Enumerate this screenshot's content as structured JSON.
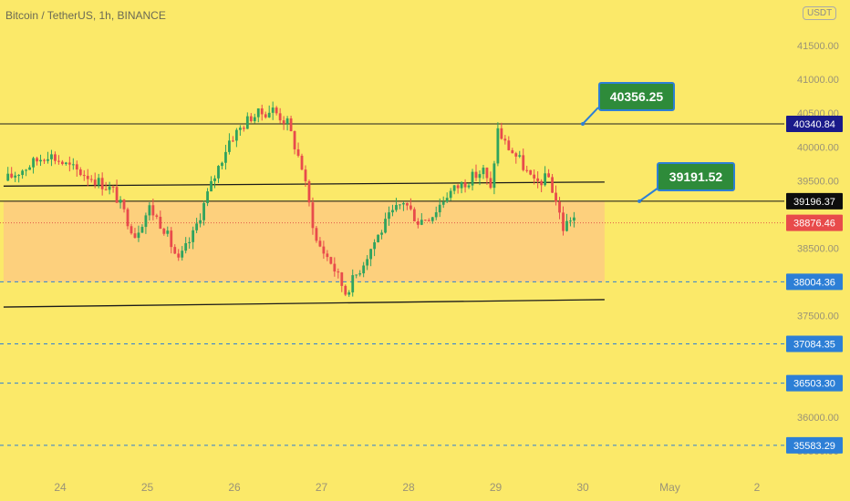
{
  "header": {
    "symbol": "Bitcoin / TetherUS, 1h, BINANCE",
    "currency": "USDT"
  },
  "callouts": {
    "upper": "40356.25",
    "middle": "39191.52"
  },
  "chart_data": {
    "type": "candlestick",
    "ylim": [
      35250,
      41900
    ],
    "price_ticks": [
      35500,
      36000,
      37500,
      38500,
      39500,
      40000,
      40500,
      41000,
      41500
    ],
    "price_tick_labels": [
      "35500.00",
      "36000.00",
      "37500.00",
      "38500.00",
      "39500.00",
      "40000.00",
      "40500.00",
      "41000.00",
      "41500.00"
    ],
    "time_labels": [
      {
        "day": 24,
        "label": "24"
      },
      {
        "day": 25,
        "label": "25"
      },
      {
        "day": 26,
        "label": "26"
      },
      {
        "day": 27,
        "label": "27"
      },
      {
        "day": 28,
        "label": "28"
      },
      {
        "day": 29,
        "label": "29"
      },
      {
        "day": 30,
        "label": "30"
      },
      {
        "day": 31,
        "label": "May"
      },
      {
        "day": 32,
        "label": "2"
      }
    ],
    "horizontal_levels": [
      {
        "price": 40340.84,
        "label": "40340.84",
        "style": "solid",
        "line": "#1e1e1e",
        "badge": "#1a1a8a"
      },
      {
        "price": 39196.37,
        "label": "39196.37",
        "style": "solid",
        "line": "#111111",
        "badge": "#0d0d0d"
      },
      {
        "price": 38876.46,
        "label": "38876.46",
        "style": "dotted",
        "line": "#e35a4b",
        "badge": "#e84b4b"
      },
      {
        "price": 38004.36,
        "label": "38004.36",
        "style": "dashed",
        "line": "#2d7fd6",
        "badge": "#2d7fd6"
      },
      {
        "price": 37084.35,
        "label": "37084.35",
        "style": "dashed",
        "line": "#2d7fd6",
        "badge": "#2d7fd6"
      },
      {
        "price": 36503.3,
        "label": "36503.30",
        "style": "dashed",
        "line": "#2d7fd6",
        "badge": "#2d7fd6"
      },
      {
        "price": 35583.29,
        "label": "35583.29",
        "style": "dashed",
        "line": "#2d7fd6",
        "badge": "#2d7fd6"
      }
    ],
    "channel_lines": [
      {
        "from": {
          "day": 23.35,
          "price": 39420
        },
        "to": {
          "day": 30.25,
          "price": 39480
        }
      },
      {
        "from": {
          "day": 23.35,
          "price": 37630
        },
        "to": {
          "day": 30.25,
          "price": 37740
        }
      }
    ],
    "zone": {
      "day_start": 23.35,
      "day_end": 30.25,
      "price_low": 38000,
      "price_high": 39200,
      "color": "#fdd07d"
    },
    "callout_targets": [
      {
        "text_key": "upper",
        "day": 30.0,
        "price": 40340.84
      },
      {
        "text_key": "middle",
        "day": 30.65,
        "price": 39196.37
      }
    ],
    "candle_series": {
      "start_day": 23.4,
      "step_hours": 1,
      "anchors": [
        [
          0,
          39500
        ],
        [
          6,
          39700
        ],
        [
          12,
          39900
        ],
        [
          18,
          39700
        ],
        [
          24,
          39550
        ],
        [
          30,
          39350
        ],
        [
          36,
          38700
        ],
        [
          40,
          39100
        ],
        [
          44,
          38800
        ],
        [
          48,
          38300
        ],
        [
          52,
          38700
        ],
        [
          56,
          39300
        ],
        [
          62,
          40100
        ],
        [
          68,
          40450
        ],
        [
          74,
          40550
        ],
        [
          78,
          40350
        ],
        [
          82,
          39700
        ],
        [
          86,
          38600
        ],
        [
          90,
          38300
        ],
        [
          94,
          37850
        ],
        [
          98,
          38200
        ],
        [
          102,
          38600
        ],
        [
          106,
          38950
        ],
        [
          110,
          39200
        ],
        [
          114,
          38900
        ],
        [
          118,
          39000
        ],
        [
          122,
          39300
        ],
        [
          126,
          39450
        ],
        [
          132,
          39650
        ],
        [
          134,
          39350
        ],
        [
          136,
          40250
        ],
        [
          138,
          40050
        ],
        [
          142,
          39800
        ],
        [
          146,
          39450
        ],
        [
          150,
          39550
        ],
        [
          152,
          39200
        ],
        [
          154,
          38800
        ],
        [
          156,
          38950
        ]
      ],
      "up_color": "#2fa35e",
      "down_color": "#e84b4b",
      "seed": 17
    }
  }
}
